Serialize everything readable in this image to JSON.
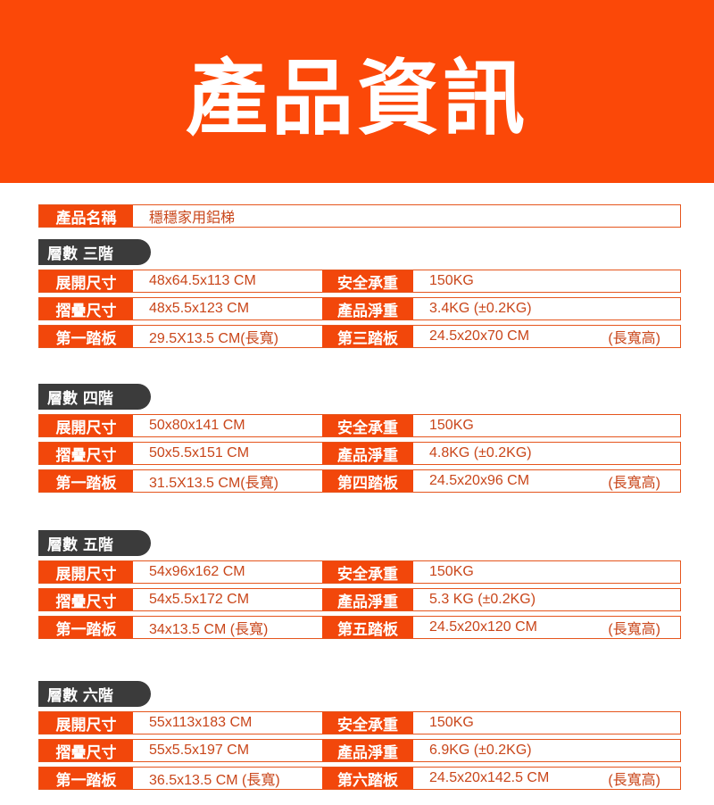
{
  "header": {
    "title": "產品資訊"
  },
  "product": {
    "label": "產品名稱",
    "value": "穩穩家用鋁梯"
  },
  "labels": {
    "unfold": "展開尺寸",
    "fold": "摺疊尺寸",
    "first": "第一踏板",
    "load": "安全承重",
    "weight": "產品淨重"
  },
  "colors": {
    "accent": "#fb4808",
    "pill": "#3b3b3b"
  },
  "sections": [
    {
      "title": "層數 三階",
      "unfold": "48x64.5x113 CM",
      "fold": "48x5.5x123 CM",
      "first": "29.5X13.5  CM(長寬)",
      "load": "150KG",
      "weight": "3.4KG (±0.2KG)",
      "top_label": "第三踏板",
      "top": "24.5x20x70 CM",
      "top_unit": "(長寬高)"
    },
    {
      "title": "層數 四階",
      "unfold": "50x80x141 CM",
      "fold": "50x5.5x151 CM",
      "first": "31.5X13.5  CM(長寬)",
      "load": "150KG",
      "weight": "4.8KG (±0.2KG)",
      "top_label": "第四踏板",
      "top": "24.5x20x96 CM",
      "top_unit": "(長寬高)"
    },
    {
      "title": "層數 五階",
      "unfold": "54x96x162 CM",
      "fold": "54x5.5x172 CM",
      "first": "34x13.5 CM    (長寬)",
      "load": "150KG",
      "weight": "5.3 KG (±0.2KG)",
      "top_label": "第五踏板",
      "top": "24.5x20x120 CM",
      "top_unit": "(長寬高)"
    },
    {
      "title": "層數 六階",
      "unfold": "55x113x183 CM",
      "fold": "55x5.5x197 CM",
      "first": "36.5x13.5 CM (長寬)",
      "load": "150KG",
      "weight": "6.9KG (±0.2KG)",
      "top_label": "第六踏板",
      "top": "24.5x20x142.5 CM",
      "top_unit": "(長寬高)"
    }
  ]
}
